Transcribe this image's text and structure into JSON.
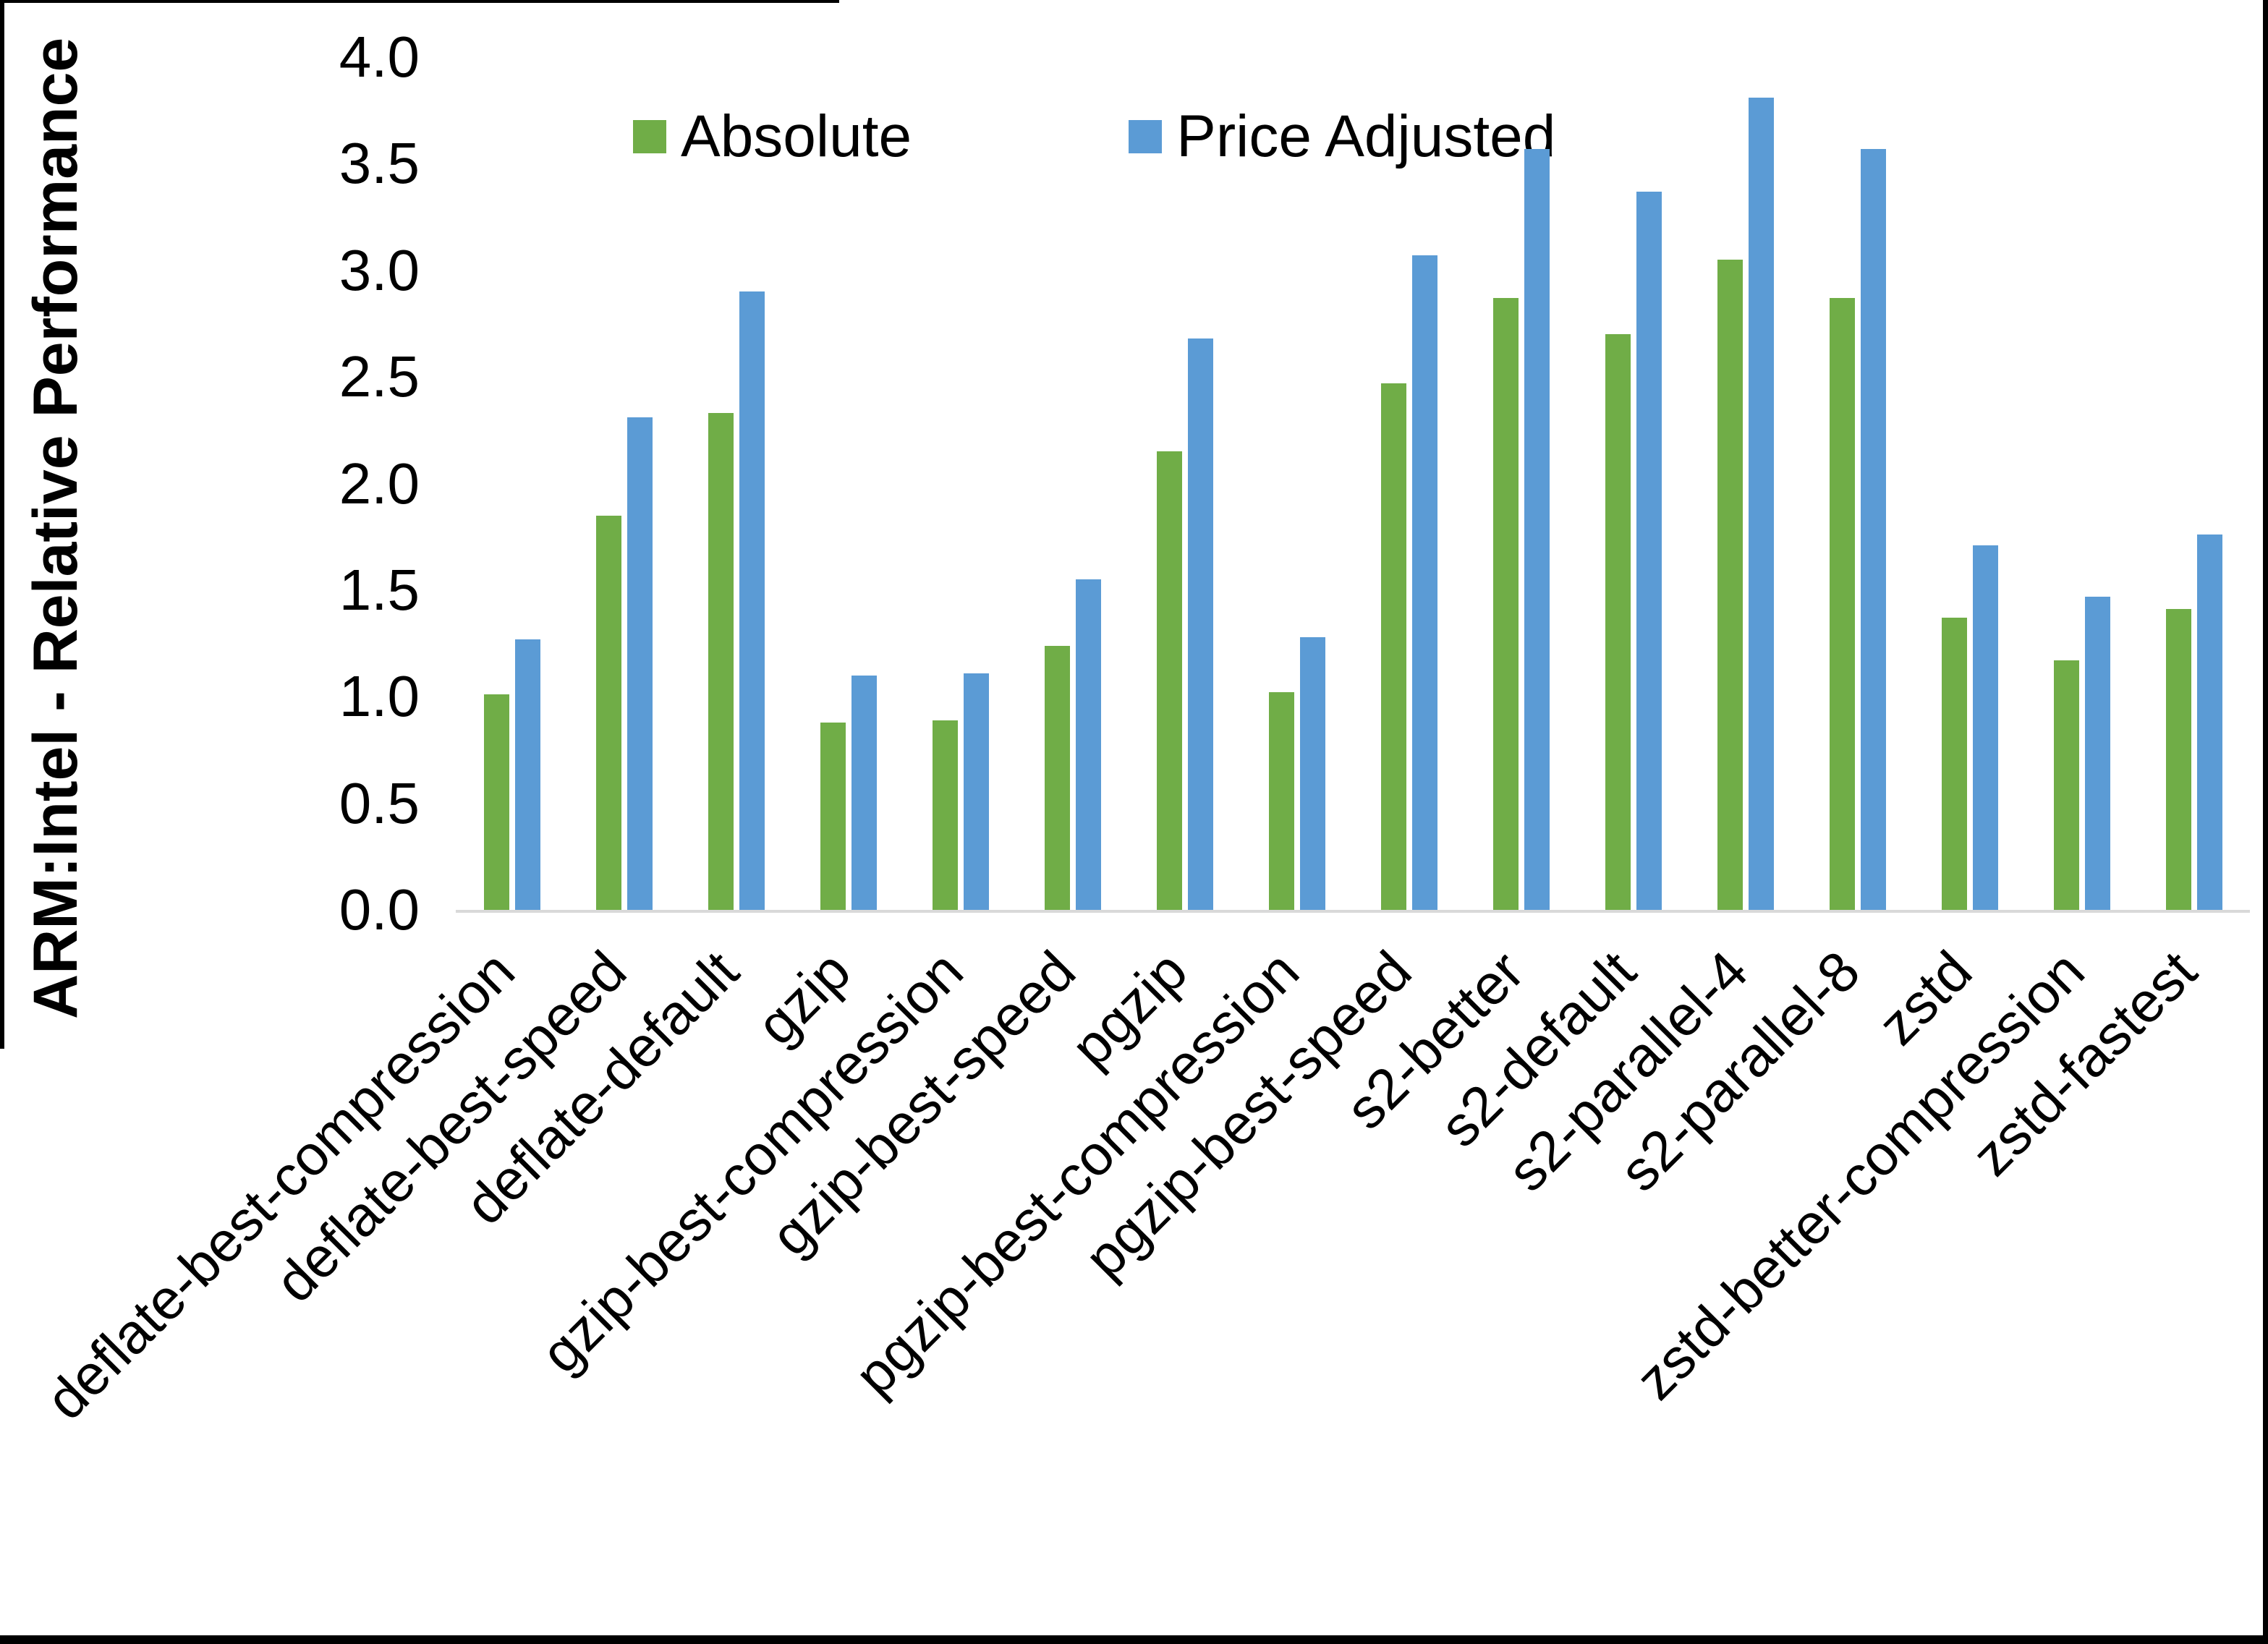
{
  "frame_color": "#000000",
  "axis_line_color": "#D9D9D9",
  "chart_data": {
    "type": "bar",
    "title": "",
    "xlabel": "",
    "ylabel": "ARM:Intel - Relative Performance",
    "ylim": [
      0.0,
      4.0
    ],
    "ytick_step": 0.5,
    "yticks": [
      "4.0",
      "3.5",
      "3.0",
      "2.5",
      "2.0",
      "1.5",
      "1.0",
      "0.5",
      "0.0"
    ],
    "grid": false,
    "legend_position": "top-center",
    "categories": [
      "deflate-best-compression",
      "deflate-best-speed",
      "deflate-default",
      "gzip",
      "gzip-best-compression",
      "gzip-best-speed",
      "pgzip",
      "pgzip-best-compression",
      "pgzip-best-speed",
      "s2-better",
      "s2-default",
      "s2-parallel-4",
      "s2-parallel-8",
      "zstd",
      "zstd-better-compression",
      "zstd-fastest"
    ],
    "series": [
      {
        "name": "Absolute",
        "color": "#70AD47",
        "values": [
          1.01,
          1.85,
          2.33,
          0.88,
          0.89,
          1.24,
          2.15,
          1.02,
          2.47,
          2.87,
          2.7,
          3.05,
          2.87,
          1.37,
          1.17,
          1.41
        ]
      },
      {
        "name": "Price Adjusted",
        "color": "#5B9BD5",
        "values": [
          1.27,
          2.31,
          2.9,
          1.1,
          1.11,
          1.55,
          2.68,
          1.28,
          3.07,
          3.57,
          3.37,
          3.81,
          3.57,
          1.71,
          1.47,
          1.76
        ]
      }
    ]
  }
}
